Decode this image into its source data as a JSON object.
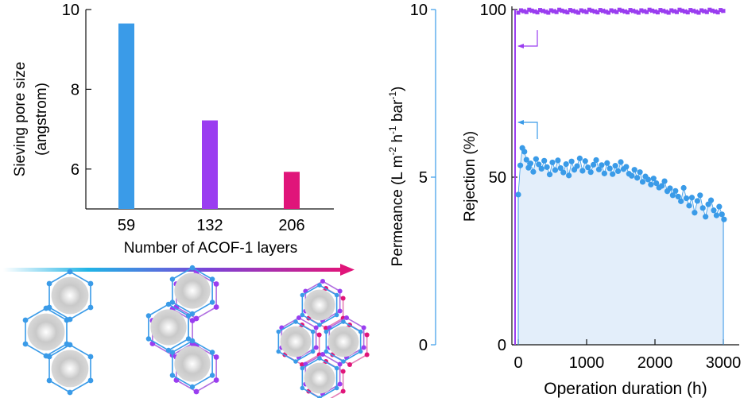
{
  "colors": {
    "blue": "#3a9be8",
    "purple": "#9a3df0",
    "magenta": "#e0157a",
    "axis": "#111111",
    "fill_blue": "#e3eefa",
    "hex_blue": "#3a9be8",
    "hex_purple": "#b06ee0"
  },
  "chart_data": [
    {
      "type": "bar",
      "categories": [
        "59",
        "132",
        "206"
      ],
      "values": [
        9.65,
        7.22,
        5.93
      ],
      "colors": [
        "#3a9be8",
        "#9a3df0",
        "#e0157a"
      ],
      "title": "",
      "xlabel": "Number of ACOF-1 layers",
      "ylabel_line1": "Sieving pore size",
      "ylabel_line2": "(angstrom)",
      "ylim": [
        5,
        10
      ],
      "yticks": [
        "6",
        "8",
        "10"
      ],
      "ytick_values": [
        6,
        8,
        10
      ],
      "grid": false
    },
    {
      "type": "scatter",
      "title": "",
      "xlabel": "Operation duration (h)",
      "ylabel_left": "Permeance (L m-2 h-1 bar-1)",
      "ylabel_right": "Rejection (%)",
      "xlim": [
        -50,
        3100
      ],
      "xticks": [
        "0",
        "1000",
        "2000",
        "3000"
      ],
      "xtick_values": [
        0,
        1000,
        2000,
        3000
      ],
      "ylim_left": [
        0,
        10
      ],
      "yticks_left": [
        "0",
        "5",
        "10"
      ],
      "ytick_left_values": [
        0,
        5,
        10
      ],
      "ylim_right": [
        0,
        100
      ],
      "yticks_right": [
        "0",
        "50",
        "100"
      ],
      "ytick_right_values": [
        0,
        50,
        100
      ],
      "grid": false,
      "series": [
        {
          "axis": "right",
          "color": "#9a3df0",
          "marker": "square",
          "x_start": 0,
          "x_end": 3020,
          "x_step": 20,
          "y_mean": 99.5,
          "note_y_range": [
            98.8,
            100
          ]
        },
        {
          "axis": "right",
          "color": "#3a9be8",
          "marker": "circle",
          "x": [
            0,
            30,
            60,
            90,
            120,
            150,
            180,
            220,
            260,
            300,
            340,
            380,
            420,
            460,
            500,
            540,
            580,
            620,
            660,
            700,
            740,
            780,
            820,
            860,
            900,
            940,
            980,
            1020,
            1060,
            1100,
            1140,
            1180,
            1220,
            1260,
            1300,
            1340,
            1380,
            1420,
            1460,
            1500,
            1540,
            1580,
            1620,
            1660,
            1700,
            1740,
            1780,
            1820,
            1860,
            1900,
            1940,
            1980,
            2020,
            2060,
            2100,
            2140,
            2180,
            2220,
            2260,
            2300,
            2340,
            2380,
            2420,
            2460,
            2500,
            2540,
            2580,
            2620,
            2660,
            2700,
            2740,
            2780,
            2820,
            2860,
            2900,
            2940,
            2980,
            3010
          ],
          "y": [
            44.8,
            53.5,
            58.7,
            57.6,
            55.2,
            52.8,
            54.1,
            51.6,
            55.4,
            53.8,
            52.5,
            54.9,
            53.0,
            50.8,
            54.4,
            52.1,
            55.0,
            52.7,
            51.4,
            53.9,
            50.5,
            54.7,
            52.2,
            53.3,
            55.6,
            51.9,
            54.8,
            52.9,
            51.5,
            53.7,
            55.1,
            52.3,
            53.6,
            51.1,
            54.2,
            52.6,
            50.9,
            53.4,
            51.8,
            54.5,
            52.4,
            53.1,
            51.0,
            50.4,
            52.2,
            49.8,
            51.5,
            48.6,
            50.2,
            49.3,
            47.8,
            49.6,
            48.2,
            46.9,
            47.4,
            48.8,
            45.8,
            46.7,
            44.6,
            45.9,
            44.2,
            42.8,
            46.8,
            43.7,
            41.5,
            43.9,
            39.4,
            42.9,
            44.6,
            40.8,
            38.2,
            41.9,
            43.1,
            40.1,
            38.6,
            41.2,
            38.9,
            37.4
          ]
        }
      ],
      "arrows": [
        "purple-left",
        "blue-left"
      ]
    }
  ]
}
